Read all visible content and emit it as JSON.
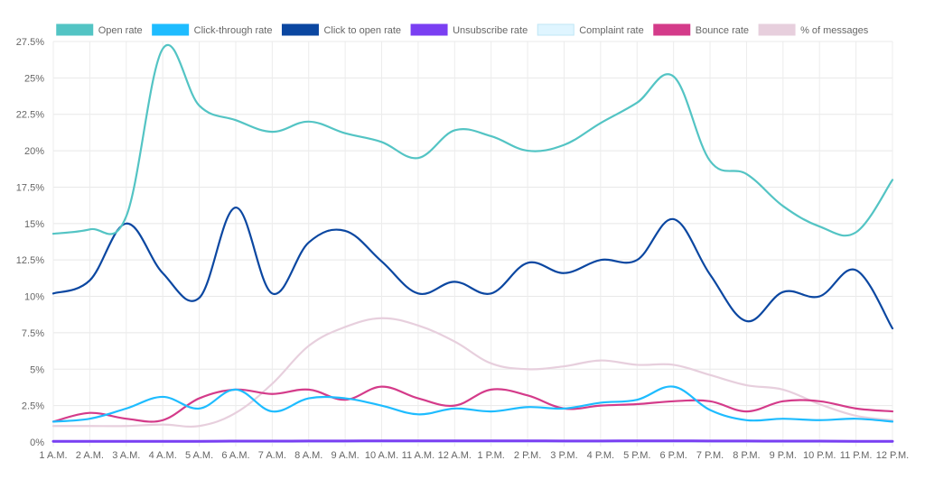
{
  "chart_data": {
    "type": "line",
    "categories": [
      "1 A.M.",
      "2 A.M.",
      "3 A.M.",
      "4 A.M.",
      "5 A.M.",
      "6 A.M.",
      "7 A.M.",
      "8 A.M.",
      "9 A.M.",
      "10 A.M.",
      "11 A.M.",
      "12 A.M.",
      "1 P.M.",
      "2 P.M.",
      "3 P.M.",
      "4 P.M.",
      "5 P.M.",
      "6 P.M.",
      "7 P.M.",
      "8 P.M.",
      "9 P.M.",
      "10 P.M.",
      "11 P.M.",
      "12 P.M."
    ],
    "y_ticks": [
      "0%",
      "2.5%",
      "5%",
      "7.5%",
      "10%",
      "12.5%",
      "15%",
      "17.5%",
      "20%",
      "22.5%",
      "25%",
      "27.5%"
    ],
    "ylim": [
      0,
      27.5
    ],
    "grid": true,
    "legend_position": "top",
    "series": [
      {
        "name": "Open rate",
        "color": "#53c4c4",
        "values": [
          14.3,
          14.6,
          15.5,
          27.0,
          23.1,
          22.1,
          21.3,
          22.0,
          21.2,
          20.6,
          19.5,
          21.4,
          21.0,
          20.0,
          20.4,
          21.9,
          23.3,
          25.1,
          19.3,
          18.4,
          16.2,
          14.8,
          14.4,
          18.0
        ]
      },
      {
        "name": "Click-through rate",
        "color": "#1ebcff",
        "values": [
          1.4,
          1.6,
          2.3,
          3.1,
          2.3,
          3.6,
          2.1,
          3.0,
          3.0,
          2.5,
          1.9,
          2.3,
          2.1,
          2.4,
          2.3,
          2.7,
          2.9,
          3.8,
          2.2,
          1.5,
          1.6,
          1.5,
          1.6,
          1.4
        ]
      },
      {
        "name": "Click to open rate",
        "color": "#0b47a1",
        "values": [
          10.2,
          11.1,
          15.0,
          11.6,
          9.9,
          16.1,
          10.2,
          13.7,
          14.5,
          12.4,
          10.2,
          11.0,
          10.2,
          12.3,
          11.6,
          12.5,
          12.5,
          15.3,
          11.5,
          8.3,
          10.3,
          10.0,
          11.8,
          7.8
        ]
      },
      {
        "name": "Unsubscribe rate",
        "color": "#7a3ff2",
        "values": [
          0.05,
          0.05,
          0.05,
          0.05,
          0.05,
          0.06,
          0.06,
          0.07,
          0.07,
          0.08,
          0.08,
          0.08,
          0.08,
          0.08,
          0.07,
          0.07,
          0.08,
          0.08,
          0.07,
          0.07,
          0.06,
          0.06,
          0.05,
          0.05
        ]
      },
      {
        "name": "Complaint rate",
        "color": "#dff5ff",
        "values": [
          0.01,
          0.01,
          0.01,
          0.01,
          0.01,
          0.01,
          0.01,
          0.01,
          0.01,
          0.01,
          0.01,
          0.01,
          0.01,
          0.01,
          0.01,
          0.01,
          0.01,
          0.01,
          0.01,
          0.01,
          0.01,
          0.01,
          0.01,
          0.01
        ]
      },
      {
        "name": "Bounce rate",
        "color": "#d43b8a",
        "values": [
          1.4,
          2.0,
          1.6,
          1.5,
          3.0,
          3.6,
          3.3,
          3.6,
          2.9,
          3.8,
          3.0,
          2.5,
          3.6,
          3.2,
          2.3,
          2.5,
          2.6,
          2.8,
          2.8,
          2.1,
          2.8,
          2.8,
          2.3,
          2.1
        ]
      },
      {
        "name": "% of messages",
        "color": "#e7cfdd",
        "values": [
          1.1,
          1.1,
          1.1,
          1.2,
          1.1,
          2.0,
          4.0,
          6.6,
          7.9,
          8.5,
          8.0,
          6.9,
          5.4,
          5.0,
          5.2,
          5.6,
          5.3,
          5.3,
          4.6,
          3.9,
          3.6,
          2.6,
          1.8,
          1.5
        ]
      }
    ]
  }
}
